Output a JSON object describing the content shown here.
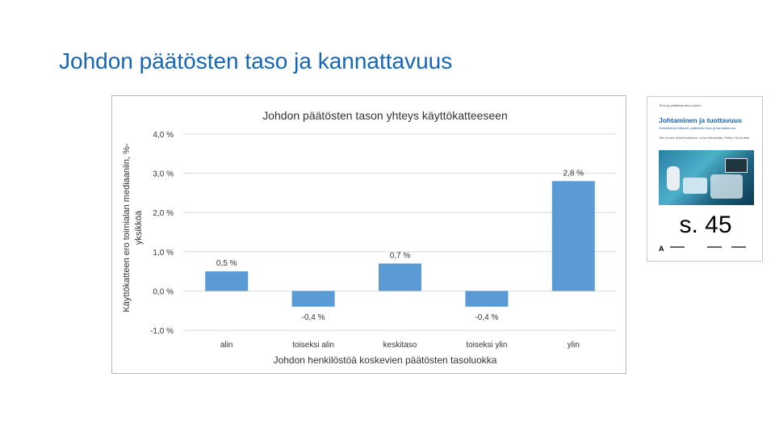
{
  "slide": {
    "title": "Johdon päätösten taso ja kannattavuus"
  },
  "chart_data": {
    "type": "bar",
    "title": "Johdon päätösten tason yhteys käyttökatteeseen",
    "xlabel": "Johdon henkilöstöä koskevien päätösten tasoluokka",
    "ylabel_line1": "Käyttökatteen ero toimialan mediaaniin, %-",
    "ylabel_line2": "yksikköä",
    "categories": [
      "alin",
      "toiseksi alin",
      "keskitaso",
      "toiseksi ylin",
      "ylin"
    ],
    "values": [
      0.5,
      -0.4,
      0.7,
      -0.4,
      2.8
    ],
    "value_labels": [
      "0,5 %",
      "-0,4 %",
      "0,7 %",
      "-0,4 %",
      "2,8 %"
    ],
    "ylim": [
      -1.0,
      4.0
    ],
    "yticks": [
      4.0,
      3.0,
      2.0,
      1.0,
      0.0,
      -1.0
    ],
    "ytick_labels": [
      "4,0 %",
      "3,0 %",
      "2,0 %",
      "1,0 %",
      "0,0 %",
      "-1,0 %"
    ],
    "bar_color": "#5b9bd5",
    "grid": true,
    "legend": "none"
  },
  "book": {
    "top_text": "Tiivis ja päätöksenteon tueksi",
    "title": "Johtaminen ja tuottavuus",
    "subtitle": "Henkilöstöön liittyvien päätösten taso ja kannattavuus",
    "authors": "Otto Kuusi, Antti Kauhanen, Juha Vainiomäki, Pekka Ylä-Anttila",
    "page_ref": "s. 45",
    "publisher_logo": "A"
  }
}
